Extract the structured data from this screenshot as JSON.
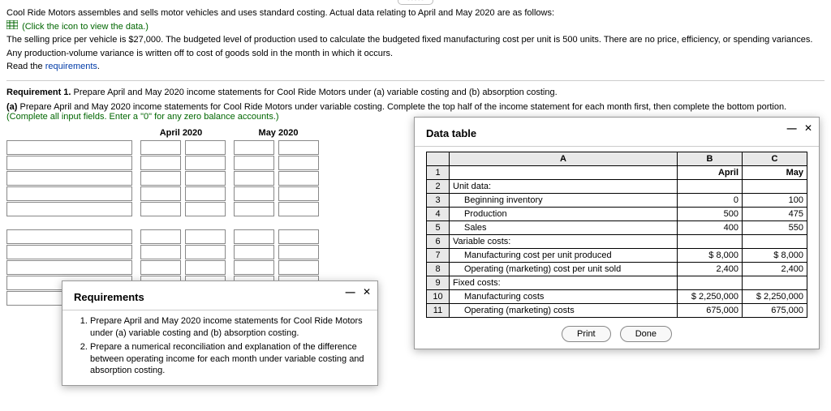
{
  "intro": {
    "p1": "Cool Ride Motors assembles and sells motor vehicles and uses standard costing. Actual data relating to April and May 2020 are as follows:",
    "link_view_data": "(Click the icon to view the data.)",
    "p2a": "The selling price per vehicle is $27,000. The budgeted level of production used to calculate the budgeted fixed manufacturing cost per unit is 500 units. There are no price, efficiency, or spending variances. Any production-volume variance is written off to cost of goods sold in the month in which it occurs.",
    "read_req_prefix": "Read the ",
    "read_req_link": "requirements"
  },
  "req_line": {
    "bold": "Requirement 1.",
    "rest": " Prepare April and May 2020 income statements for Cool Ride Motors under (a) variable costing and (b) absorption costing."
  },
  "part_a": {
    "bold": "(a)",
    "mid": " Prepare April and May 2020 income statements for Cool Ride Motors under variable costing. Complete the top half of the income statement for each month first, then complete the bottom portion. ",
    "green": "(Complete all input fields. Enter a \"0\" for any zero balance accounts.)"
  },
  "worksheet": {
    "cols": [
      "April 2020",
      "May 2020"
    ]
  },
  "requirements_popup": {
    "title": "Requirements",
    "items": [
      "Prepare April and May 2020 income statements for Cool Ride Motors under (a) variable costing and (b) absorption costing.",
      "Prepare a numerical reconciliation and explanation of the difference between operating income for each month under variable costing and absorption costing."
    ]
  },
  "data_popup": {
    "title": "Data table",
    "col_heads": [
      "A",
      "B",
      "C"
    ],
    "month_b": "April",
    "month_c": "May",
    "rows": [
      {
        "n": 2,
        "a": "Unit data:",
        "b": "",
        "c": ""
      },
      {
        "n": 3,
        "a": "Beginning inventory",
        "indent": true,
        "b": "0",
        "c": "100"
      },
      {
        "n": 4,
        "a": "Production",
        "indent": true,
        "b": "500",
        "c": "475"
      },
      {
        "n": 5,
        "a": "Sales",
        "indent": true,
        "b": "400",
        "c": "550"
      },
      {
        "n": 6,
        "a": "Variable costs:",
        "b": "",
        "c": ""
      },
      {
        "n": 7,
        "a": "Manufacturing cost per unit produced",
        "indent": true,
        "b": "$      8,000",
        "c": "$      8,000"
      },
      {
        "n": 8,
        "a": "Operating (marketing) cost per unit sold",
        "indent": true,
        "b": "2,400",
        "c": "2,400"
      },
      {
        "n": 9,
        "a": "Fixed costs:",
        "b": "",
        "c": ""
      },
      {
        "n": 10,
        "a": "Manufacturing costs",
        "indent": true,
        "b": "$ 2,250,000",
        "c": "$ 2,250,000"
      },
      {
        "n": 11,
        "a": "Operating (marketing) costs",
        "indent": true,
        "b": "675,000",
        "c": "675,000"
      }
    ],
    "print": "Print",
    "done": "Done"
  }
}
